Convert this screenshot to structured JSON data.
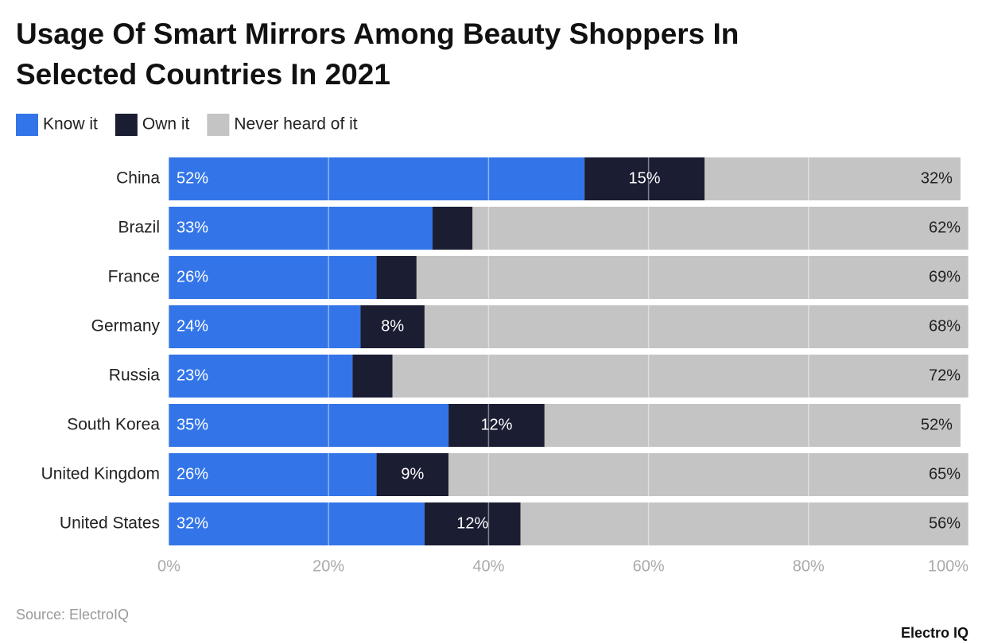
{
  "chart_data": {
    "type": "stacked-bar-horizontal",
    "title": "Usage Of Smart Mirrors Among Beauty Shoppers In Selected Countries In 2021",
    "categories": [
      "China",
      "Brazil",
      "France",
      "Germany",
      "Russia",
      "South Korea",
      "United Kingdom",
      "United States"
    ],
    "series": [
      {
        "name": "Know it",
        "color": "#3375e8",
        "values": [
          52,
          33,
          26,
          24,
          23,
          35,
          26,
          32
        ],
        "value_labels": [
          "52%",
          "33%",
          "26%",
          "24%",
          "23%",
          "35%",
          "26%",
          "32%"
        ]
      },
      {
        "name": "Own it",
        "color": "#1b1d33",
        "values": [
          15,
          5,
          5,
          8,
          5,
          12,
          9,
          12
        ],
        "value_labels": [
          "15%",
          null,
          null,
          "8%",
          null,
          "12%",
          "9%",
          "12%"
        ]
      },
      {
        "name": "Never heard of it",
        "color": "#c4c4c4",
        "values": [
          32,
          62,
          69,
          68,
          72,
          52,
          65,
          56
        ],
        "value_labels": [
          "32%",
          "62%",
          "69%",
          "68%",
          "72%",
          "52%",
          "65%",
          "56%"
        ]
      }
    ],
    "xlim": [
      0,
      100
    ],
    "xticks": [
      {
        "value": 0,
        "label": "0%"
      },
      {
        "value": 20,
        "label": "20%"
      },
      {
        "value": 40,
        "label": "40%"
      },
      {
        "value": 60,
        "label": "60%"
      },
      {
        "value": 80,
        "label": "80%"
      },
      {
        "value": 100,
        "label": "100%"
      }
    ],
    "grid": true,
    "source": "Source: ElectroIQ",
    "brand": "Electro IQ"
  }
}
